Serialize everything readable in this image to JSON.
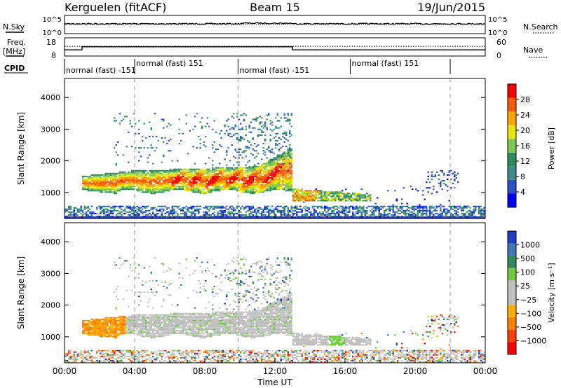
{
  "header": {
    "station": "Kerguelen (fitACF)",
    "beam": "Beam 15",
    "date": "19/Jun/2015"
  },
  "top_panels": {
    "nsky_label": "N.Sky",
    "nsky_ticks": [
      "10^5",
      "10^0"
    ],
    "nsearch_label": "N.Search",
    "nsearch_ticks": [
      "10^5",
      "10^0"
    ],
    "freq_label": "Freq.",
    "freq_unit": "[MHz]",
    "freq_ticks": [
      "18",
      "8"
    ],
    "nave_label": "Nave",
    "nave_ticks": [
      "60",
      "0"
    ],
    "cpid_label": "CPID",
    "cpid_segments": [
      {
        "label": "normal (fast) -151",
        "start": 0.0,
        "end": 4.0,
        "row": 1
      },
      {
        "label": "normal (fast) 151",
        "start": 4.0,
        "end": 9.9,
        "row": 0
      },
      {
        "label": "normal (fast) -151",
        "start": 9.9,
        "end": 16.3,
        "row": 1
      },
      {
        "label": "normal (fast) 151",
        "start": 16.3,
        "end": 22.0,
        "row": 0
      }
    ],
    "freq_step": [
      {
        "t": 0,
        "v": 12
      },
      {
        "t": 1.0,
        "v": 12
      },
      {
        "t": 1.0,
        "v": 14
      },
      {
        "t": 13.0,
        "v": 14
      },
      {
        "t": 13.0,
        "v": 12
      },
      {
        "t": 24,
        "v": 12
      }
    ],
    "nave_level": 38,
    "nsky_level": 3.2,
    "nsearch_level": 3.0
  },
  "chart_data": [
    {
      "type": "heatmap",
      "panel": "power",
      "ylabel": "Slant Range [km]",
      "ylim": [
        180,
        4600
      ],
      "yticks": [
        "1000",
        "2000",
        "3000",
        "4000"
      ],
      "ytick_values": [
        1000,
        2000,
        3000,
        4000
      ],
      "xlim": [
        0,
        24
      ],
      "colorbar_label": "Power [dB]",
      "colorbar_ticks": [
        "4",
        "8",
        "12",
        "16",
        "20",
        "24",
        "28"
      ],
      "colorbar_range": [
        0,
        32
      ],
      "colorbar_colors": [
        "#0000ff",
        "#2850c8",
        "#3c8c8c",
        "#2e8b57",
        "#7ec850",
        "#e6e600",
        "#ffa500",
        "#ff5a00",
        "#ff0000"
      ],
      "features": [
        {
          "name": "main-band",
          "t0": 1.0,
          "t1": 13.0,
          "r0": 1000,
          "r1": 1700,
          "level": 22
        },
        {
          "name": "late-band",
          "t0": 13.0,
          "t1": 17.5,
          "r0": 700,
          "r1": 1100,
          "level": 16
        },
        {
          "name": "upper-scatter",
          "t0": 2.5,
          "t1": 13.0,
          "r0": 1800,
          "r1": 3500,
          "level": 8
        },
        {
          "name": "near-range",
          "t0": 0.0,
          "t1": 24.0,
          "r0": 180,
          "r1": 550,
          "level": 6
        },
        {
          "name": "evening-patch",
          "t0": 20.5,
          "t1": 22.5,
          "r0": 1100,
          "r1": 1700,
          "level": 6
        }
      ]
    },
    {
      "type": "heatmap",
      "panel": "velocity",
      "ylabel": "Slant Range [km]",
      "ylim": [
        180,
        4600
      ],
      "yticks": [
        "1000",
        "2000",
        "3000",
        "4000"
      ],
      "ytick_values": [
        1000,
        2000,
        3000,
        4000
      ],
      "xlim": [
        0,
        24
      ],
      "colorbar_label": "Velocity [m s⁻¹]",
      "colorbar_ticks": [
        "1000",
        "500",
        "100",
        "25",
        "−25",
        "−100",
        "−500",
        "−1000"
      ],
      "colorbar_colors": [
        "#1e3cc8",
        "#3c78b4",
        "#2e8b57",
        "#6ecc3c",
        "#c0c0c0",
        "#c0c0c0",
        "#ffb000",
        "#ff8000",
        "#ff4000",
        "#ff0000"
      ],
      "features": [
        {
          "name": "main-band",
          "t0": 3.5,
          "t1": 13.0,
          "r0": 1100,
          "r1": 2000,
          "level": "ground"
        },
        {
          "name": "late-band",
          "t0": 13.0,
          "t1": 17.0,
          "r0": 750,
          "r1": 1150,
          "level": "ground"
        },
        {
          "name": "early-negative",
          "t0": 1.5,
          "t1": 3.5,
          "r0": 900,
          "r1": 1700,
          "level": "negative"
        },
        {
          "name": "green-patch",
          "t0": 15.0,
          "t1": 16.0,
          "r0": 750,
          "r1": 1000,
          "level": "positive"
        },
        {
          "name": "near-range",
          "t0": 0.0,
          "t1": 24.0,
          "r0": 180,
          "r1": 500,
          "level": "mixed"
        }
      ]
    }
  ],
  "xaxis": {
    "xticks": [
      "00:00",
      "04:00",
      "08:00",
      "12:00",
      "16:00",
      "20:00",
      "00:00"
    ],
    "xtick_values": [
      0,
      4,
      8,
      12,
      16,
      20,
      24
    ],
    "xlabel": "Time UT",
    "dashed_markers": [
      4.0,
      9.9,
      22.0
    ]
  }
}
